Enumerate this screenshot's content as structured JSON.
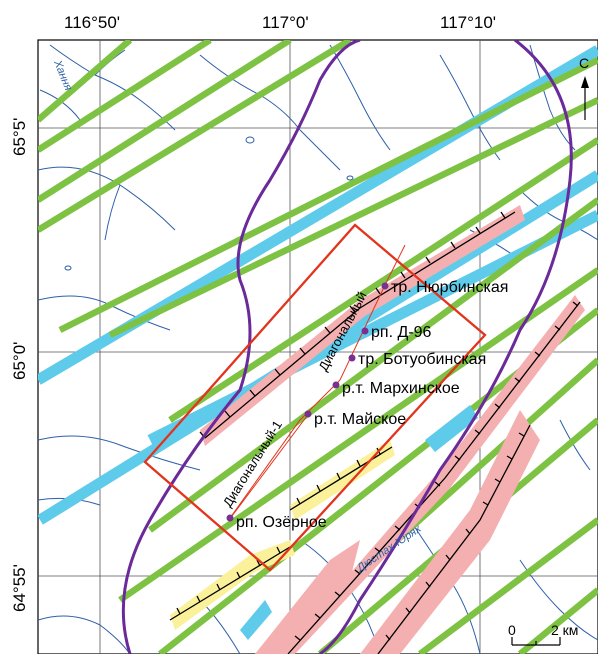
{
  "map": {
    "lon_ticks": [
      "116°50'",
      "117°0'",
      "117°10'"
    ],
    "lat_ticks": [
      "65°5'",
      "65°0'",
      "64°55'"
    ],
    "north_label": "С",
    "scale": {
      "zero": "0",
      "length": "2 км"
    },
    "rivers": [
      "Хання",
      "Дюстах-Юрях"
    ],
    "zones": [
      "Диагональный",
      "Диагональный-1"
    ],
    "places": [
      "тр. Нюрбинская",
      "рп. Д-96",
      "тр. Ботуобинская",
      "р.т. Мархинское",
      "р.т. Майское",
      "рп. Озёрное"
    ],
    "colors": {
      "green_faults": "#7dc242",
      "blue_bands": "#5ecbea",
      "pink_zones": "#f4b0b0",
      "yellow_zones": "#fbf19a",
      "study_area": "#e2341d",
      "boundary": "#6a2a9a",
      "rivers": "#2d5fa8",
      "places": "#7a3090"
    }
  }
}
